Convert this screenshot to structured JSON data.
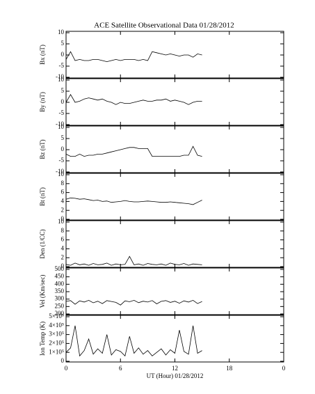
{
  "chart_data": [
    {
      "type": "line",
      "title": "ACE Satellite Observational Data   01/28/2012",
      "y_label": "Bx (nT)",
      "x": [
        0,
        0.5,
        1,
        1.5,
        2,
        2.5,
        3,
        3.5,
        4,
        4.5,
        5,
        5.5,
        6,
        6.5,
        7,
        7.5,
        8,
        8.5,
        9,
        9.5,
        10,
        10.5,
        11,
        11.5,
        12,
        12.5,
        13,
        13.5,
        14,
        14.5,
        15
      ],
      "ylim": [
        -10,
        10
      ],
      "yticks": [
        -10,
        -5,
        0,
        5,
        10
      ],
      "series": [
        {
          "color": "#000000",
          "values": [
            -2,
            1.5,
            -2.5,
            -2,
            -2.5,
            -2.5,
            -2,
            -2,
            -2.5,
            -3,
            -2.5,
            -2,
            -2.5,
            -2,
            -2,
            -2,
            -2.5,
            -2,
            -2.5,
            1.5,
            1,
            0.5,
            0,
            0.5,
            0,
            -0.5,
            0,
            0,
            -1,
            0.5,
            0
          ]
        }
      ]
    },
    {
      "type": "line",
      "y_label": "By (nT)",
      "x": [
        0,
        0.5,
        1,
        1.5,
        2,
        2.5,
        3,
        3.5,
        4,
        4.5,
        5,
        5.5,
        6,
        6.5,
        7,
        7.5,
        8,
        8.5,
        9,
        9.5,
        10,
        10.5,
        11,
        11.5,
        12,
        12.5,
        13,
        13.5,
        14,
        14.5,
        15
      ],
      "ylim": [
        -10,
        10
      ],
      "yticks": [
        -10,
        -5,
        0,
        5,
        10
      ],
      "series": [
        {
          "color": "#000000",
          "values": [
            0,
            3.5,
            0,
            0.5,
            1.5,
            2,
            1.5,
            1,
            1.5,
            0.5,
            0,
            -1,
            0,
            -0.5,
            -0.5,
            0,
            0.5,
            1,
            0.5,
            0.5,
            1,
            1,
            1.5,
            0.5,
            1,
            0.5,
            0,
            -1,
            0,
            0.5,
            0.5
          ]
        }
      ]
    },
    {
      "type": "line",
      "y_label": "Bz (nT)",
      "x": [
        0,
        0.5,
        1,
        1.5,
        2,
        2.5,
        3,
        3.5,
        4,
        4.5,
        5,
        5.5,
        6,
        6.5,
        7,
        7.5,
        8,
        8.5,
        9,
        9.5,
        10,
        10.5,
        11,
        11.5,
        12,
        12.5,
        13,
        13.5,
        14,
        14.5,
        15
      ],
      "ylim": [
        -10,
        10
      ],
      "yticks": [
        -10,
        -5,
        0,
        5,
        10
      ],
      "series": [
        {
          "color": "#000000",
          "values": [
            -2,
            -3,
            -3,
            -2,
            -3,
            -2.5,
            -2.5,
            -2,
            -2,
            -1.5,
            -1,
            -0.5,
            0,
            0.5,
            1,
            1,
            0.5,
            0.5,
            0.5,
            -3,
            -3,
            -3,
            -3,
            -3,
            -3,
            -3,
            -2.5,
            -2.5,
            1.5,
            -2.5,
            -3
          ]
        }
      ]
    },
    {
      "type": "line",
      "y_label": "Bt (nT)",
      "x": [
        0,
        0.5,
        1,
        1.5,
        2,
        2.5,
        3,
        3.5,
        4,
        4.5,
        5,
        5.5,
        6,
        6.5,
        7,
        7.5,
        8,
        8.5,
        9,
        9.5,
        10,
        10.5,
        11,
        11.5,
        12,
        12.5,
        13,
        13.5,
        14,
        14.5,
        15
      ],
      "ylim": [
        0,
        10
      ],
      "yticks": [
        0,
        2,
        4,
        6,
        8,
        10
      ],
      "series": [
        {
          "color": "#000000",
          "values": [
            4.5,
            4.8,
            4.7,
            4.5,
            4.6,
            4.4,
            4.2,
            4.3,
            4.0,
            4.1,
            3.8,
            3.9,
            4.0,
            4.2,
            4.0,
            3.9,
            3.9,
            4.0,
            4.1,
            4.0,
            3.9,
            3.8,
            3.8,
            3.9,
            3.8,
            3.7,
            3.6,
            3.5,
            3.3,
            3.8,
            4.3
          ]
        }
      ]
    },
    {
      "type": "line",
      "y_label": "Den (1/CC)",
      "x": [
        0,
        0.5,
        1,
        1.5,
        2,
        2.5,
        3,
        3.5,
        4,
        4.5,
        5,
        5.5,
        6,
        6.5,
        7,
        7.5,
        8,
        8.5,
        9,
        9.5,
        10,
        10.5,
        11,
        11.5,
        12,
        12.5,
        13,
        13.5,
        14,
        14.5,
        15
      ],
      "ylim": [
        0,
        10
      ],
      "yticks": [
        0,
        2,
        4,
        6,
        8,
        10
      ],
      "series": [
        {
          "color": "#000000",
          "values": [
            0.5,
            0.3,
            0.8,
            0.4,
            0.6,
            0.3,
            0.7,
            0.4,
            0.5,
            0.8,
            0.3,
            0.6,
            0.4,
            0.5,
            2.3,
            0.4,
            0.6,
            0.3,
            0.7,
            0.5,
            0.4,
            0.6,
            0.3,
            0.8,
            0.5,
            0.4,
            0.7,
            0.3,
            0.6,
            0.5,
            0.4
          ]
        }
      ]
    },
    {
      "type": "line",
      "y_label": "Vel (Km/sec)",
      "x": [
        0,
        0.5,
        1,
        1.5,
        2,
        2.5,
        3,
        3.5,
        4,
        4.5,
        5,
        5.5,
        6,
        6.5,
        7,
        7.5,
        8,
        8.5,
        9,
        9.5,
        10,
        10.5,
        11,
        11.5,
        12,
        12.5,
        13,
        13.5,
        14,
        14.5,
        15
      ],
      "ylim": [
        200,
        500
      ],
      "yticks": [
        200,
        250,
        300,
        350,
        400,
        450,
        500
      ],
      "series": [
        {
          "color": "#000000",
          "values": [
            285,
            290,
            265,
            288,
            280,
            292,
            275,
            286,
            270,
            290,
            284,
            278,
            260,
            288,
            282,
            292,
            276,
            286,
            280,
            290,
            268,
            285,
            290,
            278,
            286,
            272,
            288,
            280,
            292,
            270,
            284
          ]
        }
      ]
    },
    {
      "type": "line",
      "y_label": "Ion Temp (K)",
      "x_label": "UT (Hour)  01/28/2012",
      "x": [
        0,
        0.5,
        1,
        1.5,
        2,
        2.5,
        3,
        3.5,
        4,
        4.5,
        5,
        5.5,
        6,
        6.5,
        7,
        7.5,
        8,
        8.5,
        9,
        9.5,
        10,
        10.5,
        11,
        11.5,
        12,
        12.5,
        13,
        13.5,
        14,
        14.5,
        15
      ],
      "xlim": [
        0,
        24
      ],
      "xticks": [
        0,
        6,
        12,
        18,
        {
          "value": 24,
          "label": "0"
        }
      ],
      "ylim": [
        0,
        500000
      ],
      "yticks": [
        {
          "value": 0,
          "label": "0"
        },
        {
          "value": 100000,
          "label": "1×10⁵"
        },
        {
          "value": 200000,
          "label": "2×10⁵"
        },
        {
          "value": 300000,
          "label": "3×10⁵"
        },
        {
          "value": 400000,
          "label": "4×10⁵"
        },
        {
          "value": 500000,
          "label": "5×10⁵"
        }
      ],
      "series": [
        {
          "color": "#000000",
          "values": [
            100000,
            150000,
            400000,
            60000,
            120000,
            250000,
            80000,
            140000,
            90000,
            300000,
            70000,
            130000,
            110000,
            60000,
            280000,
            90000,
            150000,
            80000,
            120000,
            60000,
            100000,
            140000,
            70000,
            130000,
            90000,
            350000,
            110000,
            80000,
            400000,
            90000,
            120000
          ]
        }
      ]
    }
  ]
}
